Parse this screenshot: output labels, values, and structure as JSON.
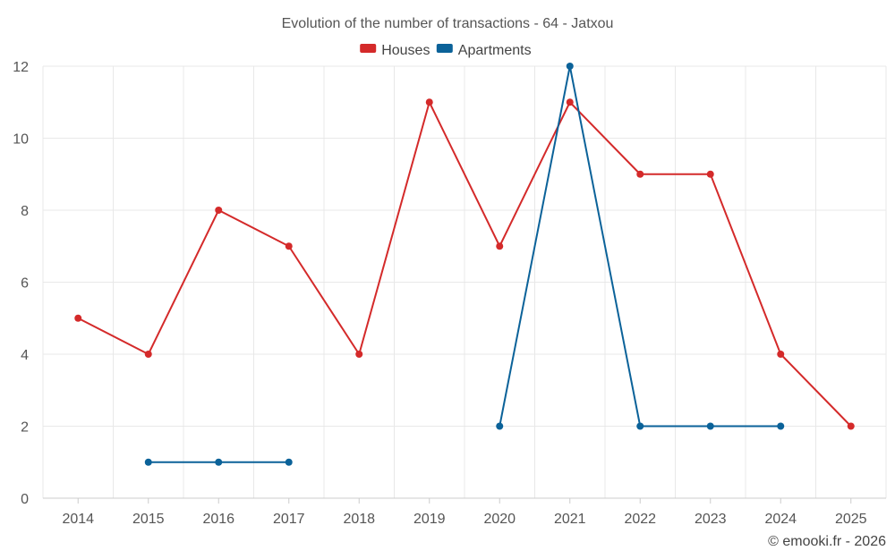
{
  "chart_data": {
    "type": "line",
    "title": "Evolution of the number of transactions - 64 - Jatxou",
    "xlabel": "",
    "ylabel": "",
    "x": [
      "2014",
      "2015",
      "2016",
      "2017",
      "2018",
      "2019",
      "2020",
      "2021",
      "2022",
      "2023",
      "2024",
      "2025"
    ],
    "ylim": [
      0,
      12
    ],
    "yticks": [
      "0",
      "2",
      "4",
      "6",
      "8",
      "10",
      "12"
    ],
    "grid": true,
    "legend_position": "top-center",
    "series": [
      {
        "name": "Houses",
        "color": "#d42a2a",
        "values": [
          5,
          4,
          8,
          7,
          4,
          11,
          7,
          11,
          9,
          9,
          4,
          2
        ]
      },
      {
        "name": "Apartments",
        "color": "#0b6299",
        "values": [
          null,
          1,
          1,
          1,
          null,
          null,
          2,
          12,
          2,
          2,
          2,
          null
        ]
      }
    ]
  },
  "credit": "© emooki.fr - 2026"
}
